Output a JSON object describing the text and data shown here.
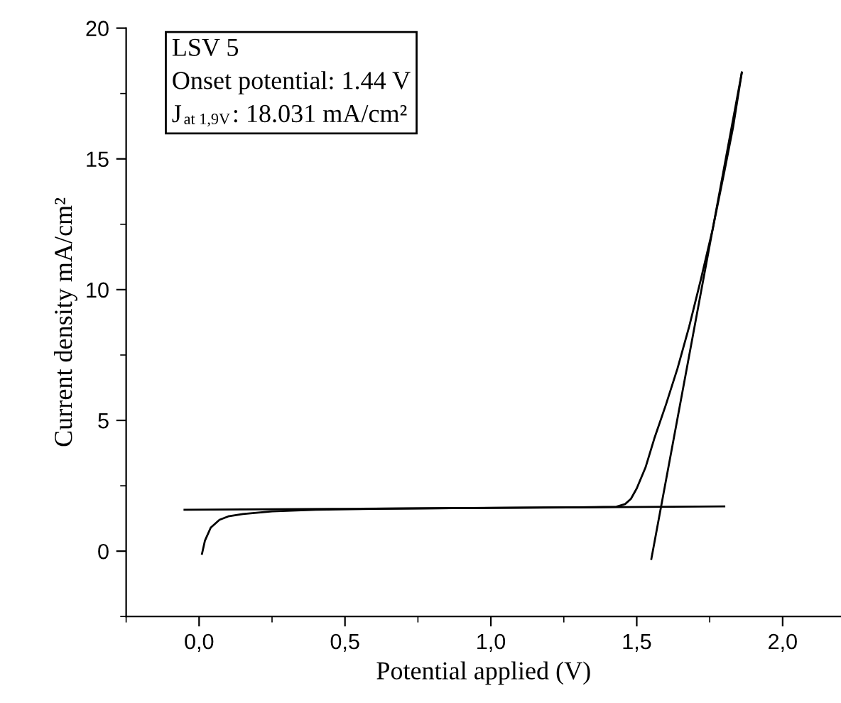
{
  "chart_data": {
    "type": "line",
    "xlabel": "Potential applied (V)",
    "ylabel": "Current density mA/cm²",
    "annotations": [
      "LSV 5",
      "Onset potential: 1.44 V",
      "J$_{at 1,9V}$: 18.031 mA/cm²"
    ],
    "xlim": [
      -0.25,
      2.2
    ],
    "ylim": [
      -2.5,
      20
    ],
    "xticks": [
      {
        "value": -0.25,
        "label": null
      },
      {
        "value": 0,
        "label": "0,0"
      },
      {
        "value": 0.25,
        "label": null
      },
      {
        "value": 0.5,
        "label": "0,5"
      },
      {
        "value": 0.75,
        "label": null
      },
      {
        "value": 1.0,
        "label": "1,0"
      },
      {
        "value": 1.25,
        "label": null
      },
      {
        "value": 1.5,
        "label": "1,5"
      },
      {
        "value": 1.75,
        "label": null
      },
      {
        "value": 2.0,
        "label": "2,0"
      }
    ],
    "yticks": [
      {
        "value": -2.5,
        "label": null
      },
      0,
      {
        "value": 2.5,
        "label": null
      },
      5,
      {
        "value": 7.5,
        "label": null
      },
      10,
      {
        "value": 12.5,
        "label": null
      },
      15,
      {
        "value": 17.5,
        "label": null
      },
      20
    ],
    "grid": false,
    "legend": false,
    "marker": "none",
    "line_style": "solid",
    "series": [
      {
        "color": "#000000",
        "x": [
          0.01,
          0.02,
          0.04,
          0.07,
          0.1,
          0.15,
          0.25,
          0.4,
          0.6,
          1.0,
          1.3,
          1.43,
          1.46,
          1.48,
          1.5,
          1.53,
          1.56,
          1.6,
          1.64,
          1.68,
          1.72,
          1.76,
          1.8,
          1.83,
          1.86
        ],
        "values": [
          -0.1,
          0.4,
          0.9,
          1.2,
          1.33,
          1.42,
          1.52,
          1.58,
          1.62,
          1.66,
          1.68,
          1.7,
          1.8,
          2.0,
          2.4,
          3.2,
          4.3,
          5.6,
          7.0,
          8.6,
          10.4,
          12.3,
          14.5,
          16.2,
          18.3
        ]
      },
      {
        "color": "#000000",
        "x": [
          -0.05,
          1.8
        ],
        "values": [
          1.58,
          1.71
        ]
      },
      {
        "color": "#000000",
        "x": [
          1.55,
          1.86
        ],
        "values": [
          -0.3,
          18.3
        ]
      }
    ]
  }
}
